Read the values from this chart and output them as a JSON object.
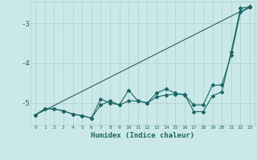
{
  "xlabel": "Humidex (Indice chaleur)",
  "ylabel": "",
  "background_color": "#cbe8e8",
  "grid_color": "#b0cccc",
  "line_color": "#1a6666",
  "xlim": [
    -0.5,
    23.5
  ],
  "ylim": [
    -5.55,
    -2.45
  ],
  "yticks": [
    -5,
    -4,
    -3
  ],
  "xticks": [
    0,
    1,
    2,
    3,
    4,
    5,
    6,
    7,
    8,
    9,
    10,
    11,
    12,
    13,
    14,
    15,
    16,
    17,
    18,
    19,
    20,
    21,
    22,
    23
  ],
  "series1_x": [
    0,
    1,
    2,
    3,
    4,
    5,
    6,
    7,
    8,
    9,
    10,
    11,
    12,
    13,
    14,
    15,
    16,
    17,
    18,
    19,
    20,
    21,
    22,
    23
  ],
  "series1_y": [
    -5.3,
    -5.15,
    -5.15,
    -5.2,
    -5.28,
    -5.32,
    -5.38,
    -4.9,
    -5.0,
    -5.05,
    -4.95,
    -4.95,
    -5.0,
    -4.75,
    -4.65,
    -4.75,
    -4.8,
    -5.05,
    -5.05,
    -4.55,
    -4.55,
    -3.8,
    -2.72,
    -2.6
  ],
  "series2_x": [
    0,
    1,
    2,
    3,
    4,
    5,
    6,
    7,
    8,
    9,
    10,
    11,
    12,
    13,
    14,
    15,
    16,
    17,
    18,
    19,
    20,
    21,
    22,
    23
  ],
  "series2_y": [
    -5.3,
    -5.15,
    -5.15,
    -5.2,
    -5.28,
    -5.32,
    -5.38,
    -5.05,
    -4.95,
    -5.05,
    -4.68,
    -4.95,
    -5.0,
    -4.85,
    -4.8,
    -4.78,
    -4.78,
    -5.22,
    -5.22,
    -4.82,
    -4.72,
    -3.72,
    -2.62,
    -2.58
  ],
  "series3_x": [
    0,
    23
  ],
  "series3_y": [
    -5.3,
    -2.58
  ]
}
